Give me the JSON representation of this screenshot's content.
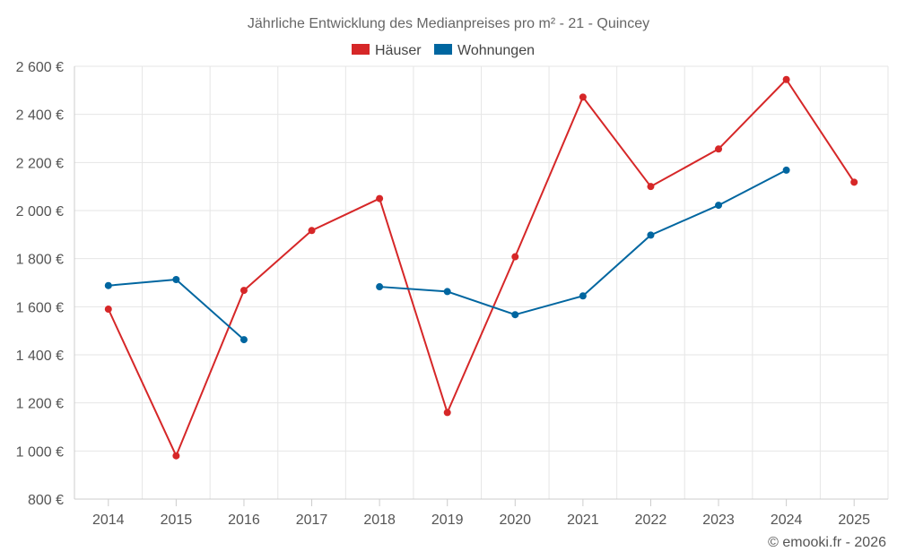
{
  "chart_data": {
    "type": "line",
    "title": "Jährliche Entwicklung des Medianpreises pro m² - 21 - Quincey",
    "categories": [
      "2014",
      "2015",
      "2016",
      "2017",
      "2018",
      "2019",
      "2020",
      "2021",
      "2022",
      "2023",
      "2024",
      "2025"
    ],
    "ylim": [
      800,
      2600
    ],
    "yticks": [
      800,
      1000,
      1200,
      1400,
      1600,
      1800,
      2000,
      2200,
      2400,
      2600
    ],
    "ytick_labels": [
      "800 €",
      "1 000 €",
      "1 200 €",
      "1 400 €",
      "1 600 €",
      "1 800 €",
      "2 000 €",
      "2 200 €",
      "2 400 €",
      "2 600 €"
    ],
    "grid": true,
    "legend_position": "top-center",
    "series": [
      {
        "name": "Häuser",
        "color": "#d62728",
        "values": [
          1590,
          980,
          1668,
          1917,
          2050,
          1160,
          1808,
          2472,
          2100,
          2256,
          2545,
          2118
        ]
      },
      {
        "name": "Wohnungen",
        "color": "#0066a0",
        "values": [
          1688,
          1713,
          1463,
          null,
          1683,
          1663,
          1567,
          1645,
          1898,
          2022,
          2168,
          null
        ]
      }
    ]
  },
  "credit": "© emooki.fr - 2026"
}
